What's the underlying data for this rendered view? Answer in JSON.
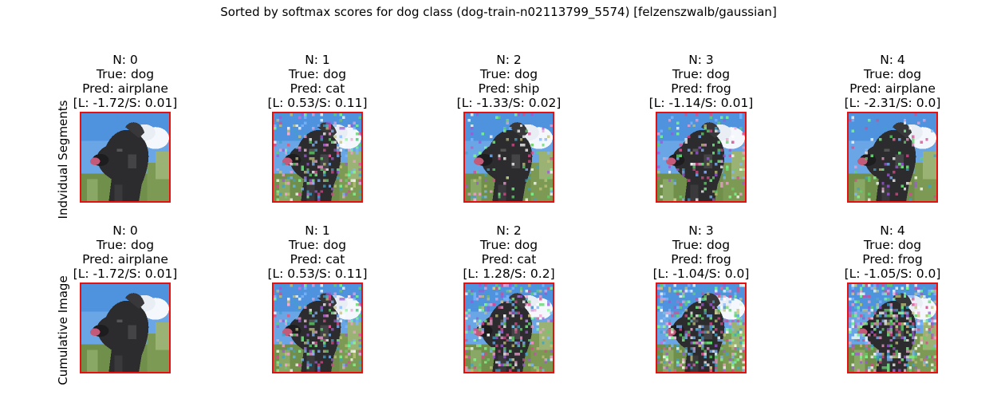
{
  "figure": {
    "title": "Sorted by softmax scores for dog class (dog-train-n02113799_5574) [felzenszwalb/gaussian]",
    "frame_color": "#e8100e"
  },
  "rows": [
    {
      "label": "Indvidual Segments",
      "cells": [
        {
          "n": "N: 0",
          "true": "True: dog",
          "pred": "Pred: airplane",
          "scores": "[L: -1.72/S: 0.01]",
          "noise": 0
        },
        {
          "n": "N: 1",
          "true": "True: dog",
          "pred": "Pred: cat",
          "scores": "[L: 0.53/S: 0.11]",
          "noise": 1
        },
        {
          "n": "N: 2",
          "true": "True: dog",
          "pred": "Pred: ship",
          "scores": "[L: -1.33/S: 0.02]",
          "noise": 2
        },
        {
          "n": "N: 3",
          "true": "True: dog",
          "pred": "Pred: frog",
          "scores": "[L: -1.14/S: 0.01]",
          "noise": 3
        },
        {
          "n": "N: 4",
          "true": "True: dog",
          "pred": "Pred: airplane",
          "scores": "[L: -2.31/S: 0.0]",
          "noise": 4
        }
      ]
    },
    {
      "label": "Cumulative Image",
      "cells": [
        {
          "n": "N: 0",
          "true": "True: dog",
          "pred": "Pred: airplane",
          "scores": "[L: -1.72/S: 0.01]",
          "noise": 0
        },
        {
          "n": "N: 1",
          "true": "True: dog",
          "pred": "Pred: cat",
          "scores": "[L: 0.53/S: 0.11]",
          "noise": 1
        },
        {
          "n": "N: 2",
          "true": "True: dog",
          "pred": "Pred: cat",
          "scores": "[L: 1.28/S: 0.2]",
          "noise": 12
        },
        {
          "n": "N: 3",
          "true": "True: dog",
          "pred": "Pred: frog",
          "scores": "[L: -1.04/S: 0.0]",
          "noise": 123
        },
        {
          "n": "N: 4",
          "true": "True: dog",
          "pred": "Pred: frog",
          "scores": "[L: -1.05/S: 0.0]",
          "noise": 1234
        }
      ]
    }
  ],
  "chart_data": {
    "type": "table",
    "title": "Sorted by softmax scores for dog class (dog-train-n02113799_5574) [felzenszwalb/gaussian]",
    "row_labels": [
      "Indvidual Segments",
      "Cumulative Image"
    ],
    "columns": [
      0,
      1,
      2,
      3,
      4
    ],
    "true_class": "dog",
    "predictions": [
      [
        "airplane",
        "cat",
        "ship",
        "frog",
        "airplane"
      ],
      [
        "airplane",
        "cat",
        "cat",
        "frog",
        "frog"
      ]
    ],
    "logits": [
      [
        -1.72,
        0.53,
        -1.33,
        -1.14,
        -2.31
      ],
      [
        -1.72,
        0.53,
        1.28,
        -1.04,
        -1.05
      ]
    ],
    "softmax": [
      [
        0.01,
        0.11,
        0.02,
        0.01,
        0.0
      ],
      [
        0.01,
        0.11,
        0.2,
        0.0,
        0.0
      ]
    ]
  }
}
